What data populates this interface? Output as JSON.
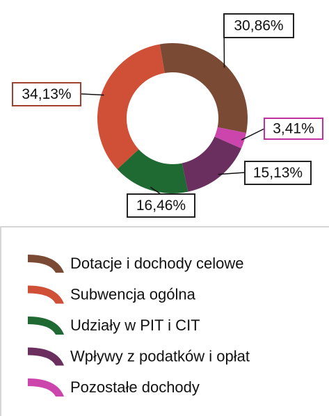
{
  "chart_data": {
    "type": "donut",
    "categories": [
      "Dotacje i dochody celowe",
      "Subwencja ogólna",
      "Udziały w PIT i CIT",
      "Wpływy z podatków i opłat",
      "Pozostałe dochody"
    ],
    "values": [
      30.86,
      34.13,
      16.46,
      15.13,
      3.41
    ],
    "value_labels": [
      "30,86%",
      "34,13%",
      "16,46%",
      "15,13%",
      "3,41%"
    ],
    "colors": [
      "#7b4a34",
      "#cf4f37",
      "#1f6a33",
      "#6a2f5f",
      "#cc45ad"
    ],
    "legend": "bottom"
  }
}
